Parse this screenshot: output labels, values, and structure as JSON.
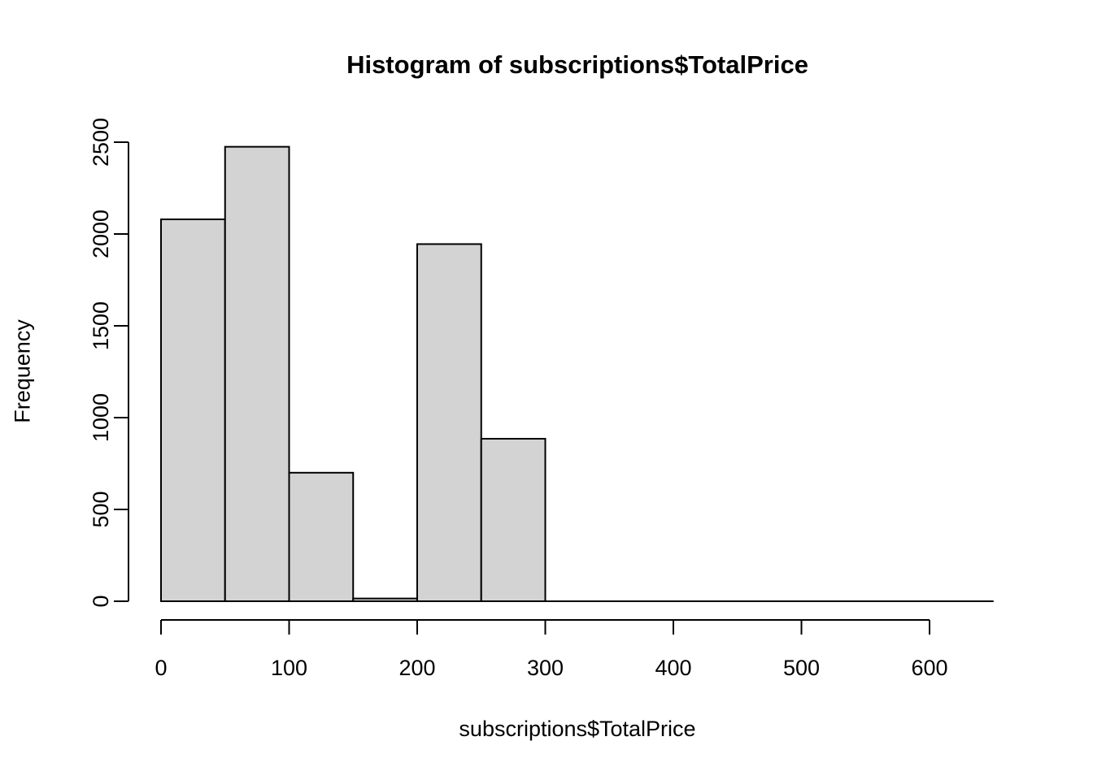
{
  "chart": {
    "colors": {
      "background": "#ffffff",
      "bar_fill": "#d3d3d3",
      "bar_border": "#000000",
      "axis": "#000000",
      "text": "#000000"
    }
  },
  "chart_data": {
    "type": "bar",
    "subtype": "histogram",
    "title": "Histogram of subscriptions$TotalPrice",
    "xlabel": "subscriptions$TotalPrice",
    "ylabel": "Frequency",
    "bin_width": 50,
    "breaks": [
      0,
      50,
      100,
      150,
      200,
      250,
      300,
      350,
      400,
      450,
      500,
      550,
      600,
      650
    ],
    "counts": [
      2080,
      2475,
      700,
      15,
      1945,
      885,
      0,
      0,
      0,
      0,
      0,
      0,
      0
    ],
    "x_ticks": [
      0,
      100,
      200,
      300,
      400,
      500,
      600
    ],
    "y_ticks": [
      0,
      500,
      1000,
      1500,
      2000,
      2500
    ],
    "xlim": [
      0,
      650
    ],
    "ylim": [
      0,
      2500
    ],
    "grid": false,
    "legend": null
  }
}
